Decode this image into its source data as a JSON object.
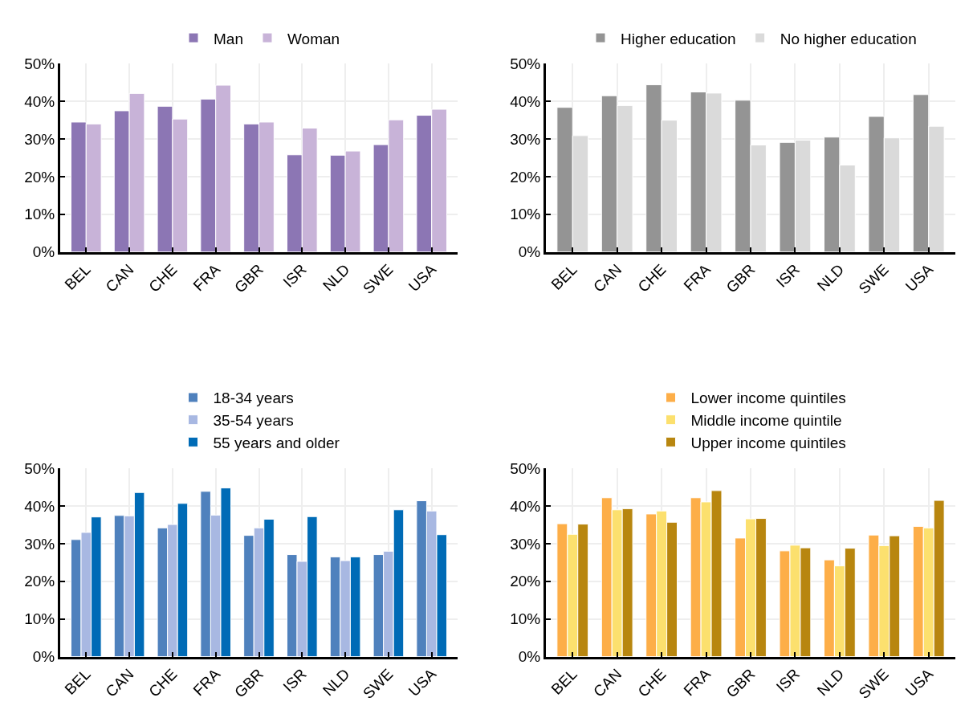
{
  "chart_data": [
    {
      "type": "bar",
      "categories": [
        "BEL",
        "CAN",
        "CHE",
        "FRA",
        "GBR",
        "ISR",
        "NLD",
        "SWE",
        "USA"
      ],
      "series": [
        {
          "name": "Man",
          "color": "#8c76b4",
          "values": [
            34.5,
            37.5,
            38.7,
            40.6,
            34.0,
            25.8,
            25.7,
            28.5,
            36.3
          ]
        },
        {
          "name": "Woman",
          "color": "#c8b3d8",
          "values": [
            34.0,
            42.1,
            35.3,
            44.3,
            34.5,
            32.9,
            26.8,
            35.1,
            37.9
          ]
        }
      ],
      "ylim": [
        0,
        50
      ],
      "yticks": [
        {
          "value": 0,
          "label": "0%"
        },
        {
          "value": 10,
          "label": "10%"
        },
        {
          "value": 20,
          "label": "20%"
        },
        {
          "value": 30,
          "label": "30%"
        },
        {
          "value": 40,
          "label": "40%"
        },
        {
          "value": 50,
          "label": "50%"
        }
      ],
      "grid": true,
      "legend": "top"
    },
    {
      "type": "bar",
      "categories": [
        "BEL",
        "CAN",
        "CHE",
        "FRA",
        "GBR",
        "ISR",
        "NLD",
        "SWE",
        "USA"
      ],
      "series": [
        {
          "name": "Higher education",
          "color": "#949494",
          "values": [
            38.4,
            41.5,
            44.4,
            42.5,
            40.3,
            29.1,
            30.5,
            36.0,
            41.8
          ]
        },
        {
          "name": "No higher education",
          "color": "#dadada",
          "values": [
            30.9,
            38.9,
            35.0,
            42.2,
            28.4,
            29.7,
            23.1,
            30.3,
            33.4
          ]
        }
      ],
      "ylim": [
        0,
        50
      ],
      "yticks": [
        {
          "value": 0,
          "label": "0%"
        },
        {
          "value": 10,
          "label": "10%"
        },
        {
          "value": 20,
          "label": "20%"
        },
        {
          "value": 30,
          "label": "30%"
        },
        {
          "value": 40,
          "label": "40%"
        },
        {
          "value": 50,
          "label": "50%"
        }
      ],
      "grid": true,
      "legend": "top"
    },
    {
      "type": "bar",
      "categories": [
        "BEL",
        "CAN",
        "CHE",
        "FRA",
        "GBR",
        "ISR",
        "NLD",
        "SWE",
        "USA"
      ],
      "series": [
        {
          "name": "18-34 years",
          "color": "#4f81bd",
          "values": [
            31.1,
            37.5,
            34.2,
            43.9,
            32.2,
            27.1,
            26.5,
            27.1,
            41.4
          ]
        },
        {
          "name": "35-54 years",
          "color": "#a8b8e2",
          "values": [
            33.0,
            37.4,
            35.1,
            37.6,
            34.2,
            25.3,
            25.5,
            28.0,
            38.7
          ]
        },
        {
          "name": "55 years and older",
          "color": "#006bb6",
          "values": [
            37.1,
            43.6,
            40.7,
            44.8,
            36.5,
            37.2,
            26.5,
            39.0,
            32.4
          ]
        }
      ],
      "ylim": [
        0,
        50
      ],
      "yticks": [
        {
          "value": 0,
          "label": "0%"
        },
        {
          "value": 10,
          "label": "10%"
        },
        {
          "value": 20,
          "label": "20%"
        },
        {
          "value": 30,
          "label": "30%"
        },
        {
          "value": 40,
          "label": "40%"
        },
        {
          "value": 50,
          "label": "50%"
        }
      ],
      "grid": true,
      "legend": "top"
    },
    {
      "type": "bar",
      "categories": [
        "BEL",
        "CAN",
        "CHE",
        "FRA",
        "GBR",
        "ISR",
        "NLD",
        "SWE",
        "USA"
      ],
      "series": [
        {
          "name": "Lower income quintiles",
          "color": "#fdae48",
          "values": [
            35.3,
            42.2,
            37.9,
            42.2,
            31.5,
            28.1,
            25.7,
            32.3,
            34.6
          ]
        },
        {
          "name": "Middle income quintile",
          "color": "#fce06e",
          "values": [
            32.5,
            39.0,
            38.7,
            41.1,
            36.6,
            29.6,
            24.1,
            29.5,
            34.2
          ]
        },
        {
          "name": "Upper income quintiles",
          "color": "#b8860f",
          "values": [
            35.2,
            39.3,
            35.7,
            44.1,
            36.7,
            28.9,
            28.8,
            32.1,
            41.5
          ]
        }
      ],
      "ylim": [
        0,
        50
      ],
      "yticks": [
        {
          "value": 0,
          "label": "0%"
        },
        {
          "value": 10,
          "label": "10%"
        },
        {
          "value": 20,
          "label": "20%"
        },
        {
          "value": 30,
          "label": "30%"
        },
        {
          "value": 40,
          "label": "40%"
        },
        {
          "value": 50,
          "label": "50%"
        }
      ],
      "grid": true,
      "legend": "top"
    }
  ]
}
